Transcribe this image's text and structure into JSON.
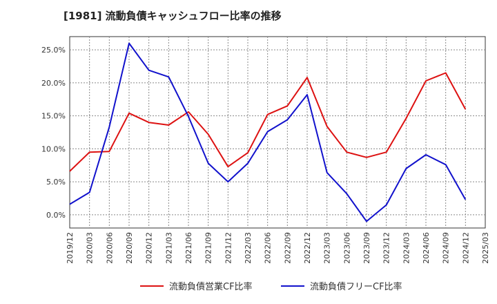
{
  "chart_data": {
    "type": "line",
    "title": "[1981]  流動負債キャッシュフロー比率の推移",
    "xlabel": "",
    "ylabel": "",
    "categories": [
      "2019/12",
      "2020/03",
      "2020/06",
      "2020/09",
      "2020/12",
      "2021/03",
      "2021/06",
      "2021/09",
      "2021/12",
      "2022/03",
      "2022/06",
      "2022/09",
      "2022/12",
      "2023/03",
      "2023/06",
      "2023/09",
      "2023/12",
      "2024/03",
      "2024/06",
      "2024/09",
      "2024/12",
      "2025/03"
    ],
    "y_ticks": [
      "25.0%",
      "20.0%",
      "15.0%",
      "10.0%",
      "5.0%",
      "0.0%"
    ],
    "ylim": [
      -2.0,
      27.0
    ],
    "grid": true,
    "legend_position": "bottom",
    "series": [
      {
        "name": "流動負債営業CF比率",
        "color": "#dd1111",
        "values": [
          6.6,
          9.5,
          9.6,
          15.4,
          14.0,
          13.6,
          15.6,
          12.2,
          7.3,
          9.4,
          15.2,
          16.5,
          20.8,
          13.4,
          9.5,
          8.7,
          9.5,
          14.6,
          20.3,
          21.5,
          16.0,
          null
        ]
      },
      {
        "name": "流動負債フリーCF比率",
        "color": "#1111cc",
        "values": [
          1.6,
          3.4,
          13.3,
          26.0,
          21.9,
          20.9,
          14.9,
          7.8,
          5.0,
          7.8,
          12.6,
          14.4,
          18.2,
          6.4,
          3.2,
          -1.0,
          1.5,
          7.0,
          9.1,
          7.6,
          2.3,
          null
        ]
      }
    ]
  }
}
